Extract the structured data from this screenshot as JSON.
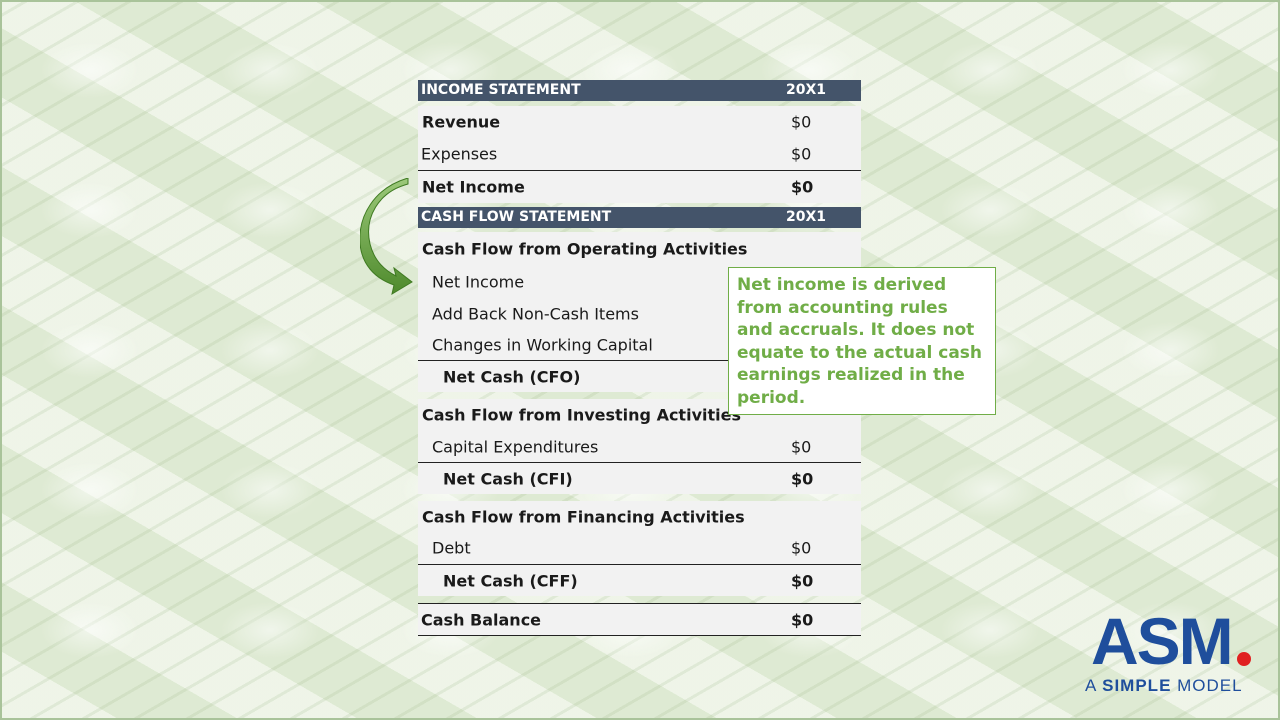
{
  "income_statement": {
    "header": {
      "title": "INCOME STATEMENT",
      "year": "20X1"
    },
    "rows": [
      {
        "label": "Revenue",
        "value": "$0"
      },
      {
        "label": "Expenses",
        "value": "$0"
      },
      {
        "label": "Net Income",
        "value": "$0"
      }
    ]
  },
  "cash_flow_statement": {
    "header": {
      "title": "CASH FLOW STATEMENT",
      "year": "20X1"
    },
    "operating": {
      "title": "Cash Flow from Operating Activities",
      "items": [
        {
          "label": "Net Income"
        },
        {
          "label": "Add Back Non-Cash Items"
        },
        {
          "label": "Changes in Working Capital"
        }
      ],
      "total": {
        "label": "Net Cash (CFO)"
      }
    },
    "investing": {
      "title": "Cash Flow from Investing Activities",
      "items": [
        {
          "label": "Capital Expenditures",
          "value": "$0"
        }
      ],
      "total": {
        "label": "Net Cash (CFI)",
        "value": "$0"
      }
    },
    "financing": {
      "title": "Cash Flow from Financing Activities",
      "items": [
        {
          "label": "Debt",
          "value": "$0"
        }
      ],
      "total": {
        "label": "Net Cash (CFF)",
        "value": "$0"
      }
    },
    "cash_balance": {
      "label": "Cash Balance",
      "value": "$0"
    }
  },
  "note": {
    "text": "Net income is derived from accounting rules and accruals. It does not equate to the actual cash earnings realized in the period."
  },
  "logo": {
    "main": "ASM",
    "tagline_a": "A ",
    "tagline_simple": "SIMPLE",
    "tagline_model": " MODEL"
  },
  "colors": {
    "header_bg": "#44546a",
    "note_green": "#70ad47",
    "logo_blue": "#1f4e9c",
    "logo_dot": "#e02020"
  }
}
